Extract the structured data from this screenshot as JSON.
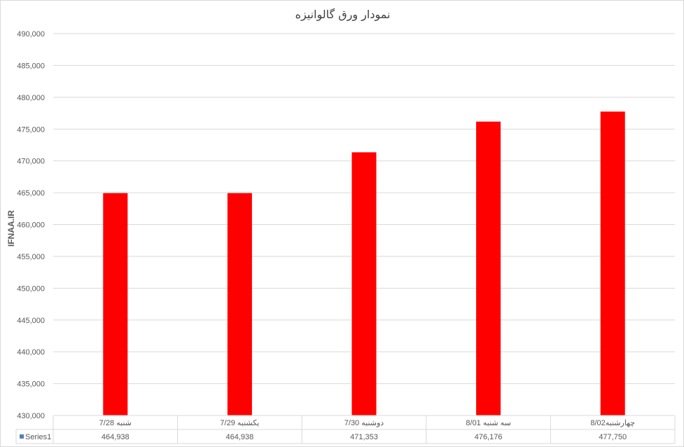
{
  "chart_data": {
    "type": "bar",
    "title": "نمودار ورق گالوانیزه",
    "ylabel": "IFNAA.IR",
    "xlabel": "",
    "categories": [
      "شنبه 7/28",
      "یکشنبه 7/29",
      "دوشنبه 7/30",
      "سه شنبه 8/01",
      "چهارشنبه8/02"
    ],
    "series": [
      {
        "name": "Series1",
        "values": [
          464938,
          464938,
          471353,
          476176,
          477750
        ],
        "labels": [
          "464,938",
          "464,938",
          "471,353",
          "476,176",
          "477,750"
        ],
        "color": "#ff0000"
      }
    ],
    "ylim": [
      430000,
      490000
    ],
    "yticks": [
      "430,000",
      "435,000",
      "440,000",
      "445,000",
      "450,000",
      "455,000",
      "460,000",
      "465,000",
      "470,000",
      "475,000",
      "480,000",
      "485,000",
      "490,000"
    ],
    "grid": true,
    "data_table": true,
    "legend_key_color": "#4f81bd"
  }
}
